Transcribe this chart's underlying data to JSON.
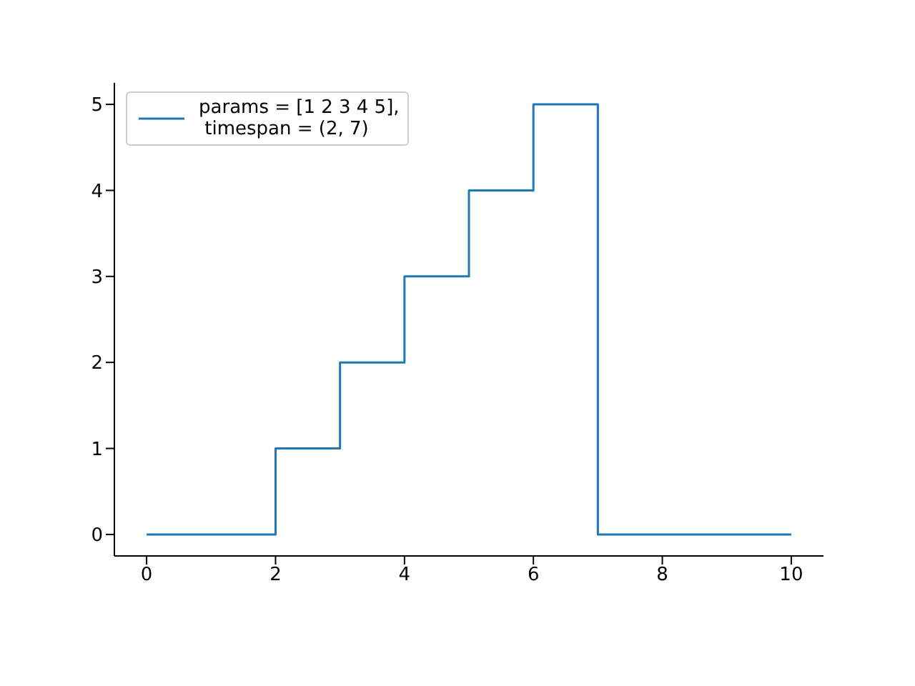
{
  "chart_data": {
    "type": "step",
    "x": [
      0,
      2,
      3,
      4,
      5,
      6,
      7,
      10
    ],
    "series": [
      {
        "name": "params = [1 2 3 4 5],\n timespan = (2, 7)",
        "color": "#1f77b4",
        "values": [
          0,
          1,
          2,
          3,
          4,
          5,
          0,
          0
        ]
      }
    ],
    "xlim": [
      -0.5,
      10.5
    ],
    "xticks": [
      0,
      2,
      4,
      6,
      8,
      10
    ],
    "ylim": [
      -0.25,
      5.25
    ],
    "yticks": [
      0,
      1,
      2,
      3,
      4,
      5
    ],
    "grid": false,
    "legend": "top left",
    "marker": "none",
    "line_style": "solid"
  }
}
